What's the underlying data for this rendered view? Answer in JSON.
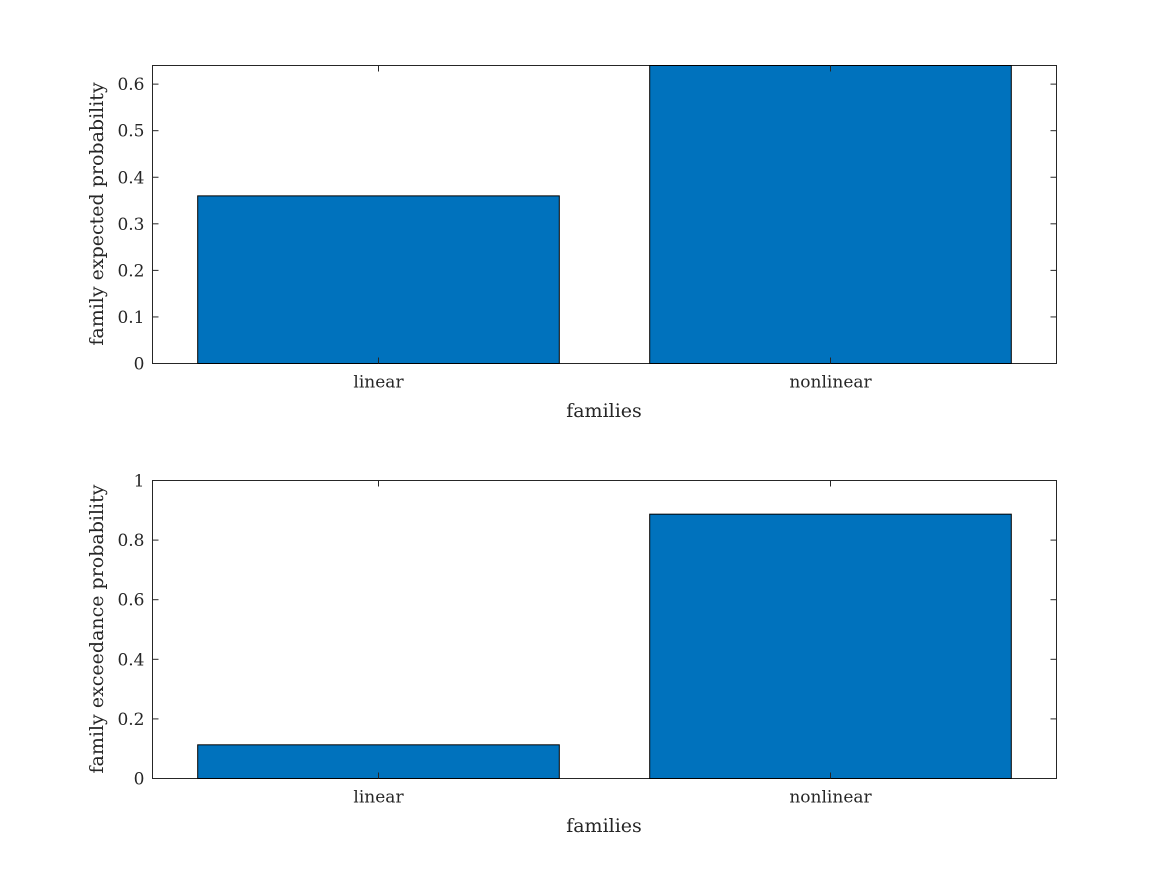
{
  "chart_data": [
    {
      "type": "bar",
      "categories": [
        "linear",
        "nonlinear"
      ],
      "values": [
        0.36,
        0.64
      ],
      "title": "",
      "xlabel": "families",
      "ylabel": "family expected probability",
      "ylim": [
        0,
        0.64
      ],
      "yticks": [
        0,
        0.1,
        0.2,
        0.3,
        0.4,
        0.5,
        0.6
      ],
      "ytick_labels": [
        "0",
        "0.1",
        "0.2",
        "0.3",
        "0.4",
        "0.5",
        "0.6"
      ],
      "bar_color": "#0072BD",
      "grid": false
    },
    {
      "type": "bar",
      "categories": [
        "linear",
        "nonlinear"
      ],
      "values": [
        0.113,
        0.887
      ],
      "title": "",
      "xlabel": "families",
      "ylabel": "family exceedance probability",
      "ylim": [
        0,
        1
      ],
      "yticks": [
        0,
        0.2,
        0.4,
        0.6,
        0.8,
        1
      ],
      "ytick_labels": [
        "0",
        "0.2",
        "0.4",
        "0.6",
        "0.8",
        "1"
      ],
      "bar_color": "#0072BD",
      "grid": false
    }
  ]
}
